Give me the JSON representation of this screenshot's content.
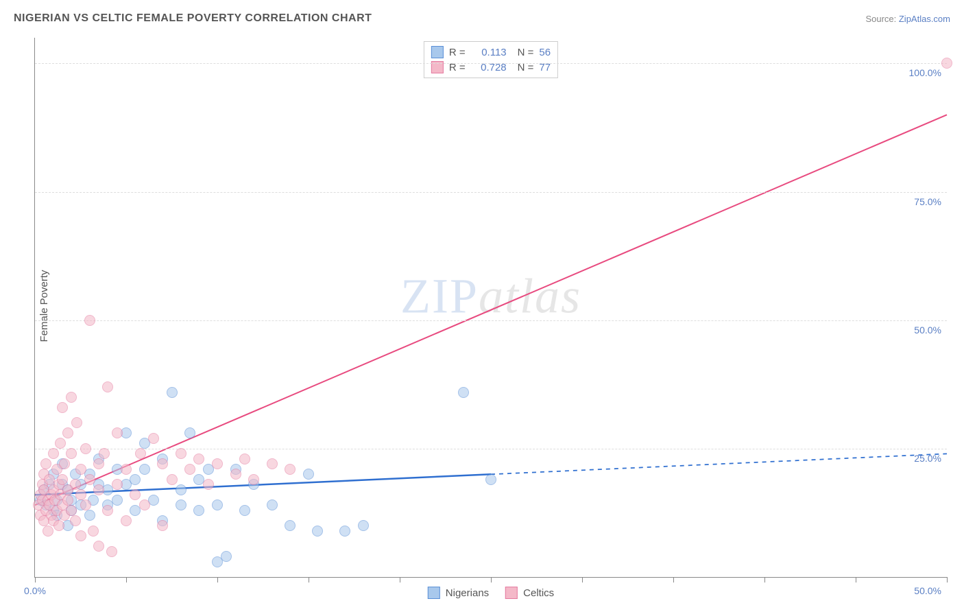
{
  "title": "NIGERIAN VS CELTIC FEMALE POVERTY CORRELATION CHART",
  "source_prefix": "Source: ",
  "source_link": "ZipAtlas.com",
  "watermark_zip": "ZIP",
  "watermark_atlas": "atlas",
  "ylabel": "Female Poverty",
  "chart": {
    "type": "scatter",
    "xlim": [
      0,
      50
    ],
    "ylim": [
      0,
      105
    ],
    "xtick_positions": [
      0,
      5,
      10,
      15,
      20,
      25,
      30,
      35,
      40,
      45,
      50
    ],
    "xtick_labels": {
      "0": "0.0%",
      "50": "50.0%"
    },
    "ytick_positions": [
      25,
      50,
      75,
      100
    ],
    "ytick_labels": [
      "25.0%",
      "50.0%",
      "75.0%",
      "100.0%"
    ],
    "grid_color": "#dddddd",
    "axis_color": "#888888",
    "background_color": "#ffffff",
    "point_radius": 8,
    "point_opacity": 0.55,
    "series": [
      {
        "name": "Nigerians",
        "color_fill": "#a8c8ec",
        "color_stroke": "#5a8fd6",
        "R": "0.113",
        "N": "56",
        "trend": {
          "x1": 0,
          "y1": 16,
          "x2": 25,
          "y2": 20,
          "x2_ext": 50,
          "y2_ext": 24,
          "stroke": "#2f6fd0",
          "width": 2.5
        },
        "points": [
          [
            0.3,
            15
          ],
          [
            0.5,
            17
          ],
          [
            0.6,
            14
          ],
          [
            0.8,
            18
          ],
          [
            1.0,
            13
          ],
          [
            1.0,
            20
          ],
          [
            1.2,
            15
          ],
          [
            1.2,
            12
          ],
          [
            1.5,
            18
          ],
          [
            1.5,
            22
          ],
          [
            1.8,
            17
          ],
          [
            1.8,
            10
          ],
          [
            2.0,
            13
          ],
          [
            2.0,
            15
          ],
          [
            2.2,
            20
          ],
          [
            2.5,
            18
          ],
          [
            2.5,
            14
          ],
          [
            3.0,
            20
          ],
          [
            3.0,
            12
          ],
          [
            3.2,
            15
          ],
          [
            3.5,
            23
          ],
          [
            3.5,
            18
          ],
          [
            4.0,
            14
          ],
          [
            4.0,
            17
          ],
          [
            4.5,
            21
          ],
          [
            4.5,
            15
          ],
          [
            5.0,
            28
          ],
          [
            5.0,
            18
          ],
          [
            5.5,
            19
          ],
          [
            5.5,
            13
          ],
          [
            6.0,
            21
          ],
          [
            6.0,
            26
          ],
          [
            6.5,
            15
          ],
          [
            7.0,
            23
          ],
          [
            7.0,
            11
          ],
          [
            7.5,
            36
          ],
          [
            8.0,
            17
          ],
          [
            8.0,
            14
          ],
          [
            8.5,
            28
          ],
          [
            9.0,
            19
          ],
          [
            9.0,
            13
          ],
          [
            9.5,
            21
          ],
          [
            10.0,
            14
          ],
          [
            10.0,
            3
          ],
          [
            10.5,
            4
          ],
          [
            11.0,
            21
          ],
          [
            11.5,
            13
          ],
          [
            12.0,
            18
          ],
          [
            13.0,
            14
          ],
          [
            14.0,
            10
          ],
          [
            15.0,
            20
          ],
          [
            15.5,
            9
          ],
          [
            17.0,
            9
          ],
          [
            18.0,
            10
          ],
          [
            23.5,
            36
          ],
          [
            25.0,
            19
          ]
        ]
      },
      {
        "name": "Celtics",
        "color_fill": "#f4b8c8",
        "color_stroke": "#e57ba0",
        "R": "0.728",
        "N": "77",
        "trend": {
          "x1": 0,
          "y1": 14,
          "x2": 50,
          "y2": 90,
          "stroke": "#e84a7f",
          "width": 2
        },
        "points": [
          [
            0.2,
            14
          ],
          [
            0.3,
            16
          ],
          [
            0.3,
            12
          ],
          [
            0.4,
            18
          ],
          [
            0.4,
            15
          ],
          [
            0.5,
            11
          ],
          [
            0.5,
            17
          ],
          [
            0.5,
            20
          ],
          [
            0.6,
            13
          ],
          [
            0.6,
            22
          ],
          [
            0.7,
            15
          ],
          [
            0.7,
            9
          ],
          [
            0.8,
            14
          ],
          [
            0.8,
            19
          ],
          [
            0.9,
            16
          ],
          [
            0.9,
            12
          ],
          [
            1.0,
            17
          ],
          [
            1.0,
            24
          ],
          [
            1.0,
            11
          ],
          [
            1.1,
            15
          ],
          [
            1.2,
            21
          ],
          [
            1.2,
            13
          ],
          [
            1.3,
            18
          ],
          [
            1.3,
            10
          ],
          [
            1.4,
            16
          ],
          [
            1.4,
            26
          ],
          [
            1.5,
            14
          ],
          [
            1.5,
            19
          ],
          [
            1.5,
            33
          ],
          [
            1.6,
            12
          ],
          [
            1.6,
            22
          ],
          [
            1.8,
            15
          ],
          [
            1.8,
            28
          ],
          [
            1.8,
            17
          ],
          [
            2.0,
            13
          ],
          [
            2.0,
            24
          ],
          [
            2.0,
            35
          ],
          [
            2.2,
            18
          ],
          [
            2.2,
            11
          ],
          [
            2.3,
            30
          ],
          [
            2.5,
            16
          ],
          [
            2.5,
            21
          ],
          [
            2.5,
            8
          ],
          [
            2.8,
            14
          ],
          [
            2.8,
            25
          ],
          [
            3.0,
            50
          ],
          [
            3.0,
            19
          ],
          [
            3.2,
            9
          ],
          [
            3.5,
            17
          ],
          [
            3.5,
            22
          ],
          [
            3.5,
            6
          ],
          [
            3.8,
            24
          ],
          [
            4.0,
            13
          ],
          [
            4.0,
            37
          ],
          [
            4.2,
            5
          ],
          [
            4.5,
            28
          ],
          [
            4.5,
            18
          ],
          [
            5.0,
            11
          ],
          [
            5.0,
            21
          ],
          [
            5.5,
            16
          ],
          [
            5.8,
            24
          ],
          [
            6.0,
            14
          ],
          [
            6.5,
            27
          ],
          [
            7.0,
            22
          ],
          [
            7.0,
            10
          ],
          [
            7.5,
            19
          ],
          [
            8.0,
            24
          ],
          [
            8.5,
            21
          ],
          [
            9.0,
            23
          ],
          [
            9.5,
            18
          ],
          [
            10.0,
            22
          ],
          [
            11.0,
            20
          ],
          [
            11.5,
            23
          ],
          [
            12.0,
            19
          ],
          [
            13.0,
            22
          ],
          [
            14.0,
            21
          ],
          [
            50.0,
            100
          ]
        ]
      }
    ]
  },
  "legend_bottom": [
    {
      "label": "Nigerians",
      "fill": "#a8c8ec",
      "stroke": "#5a8fd6"
    },
    {
      "label": "Celtics",
      "fill": "#f4b8c8",
      "stroke": "#e57ba0"
    }
  ]
}
